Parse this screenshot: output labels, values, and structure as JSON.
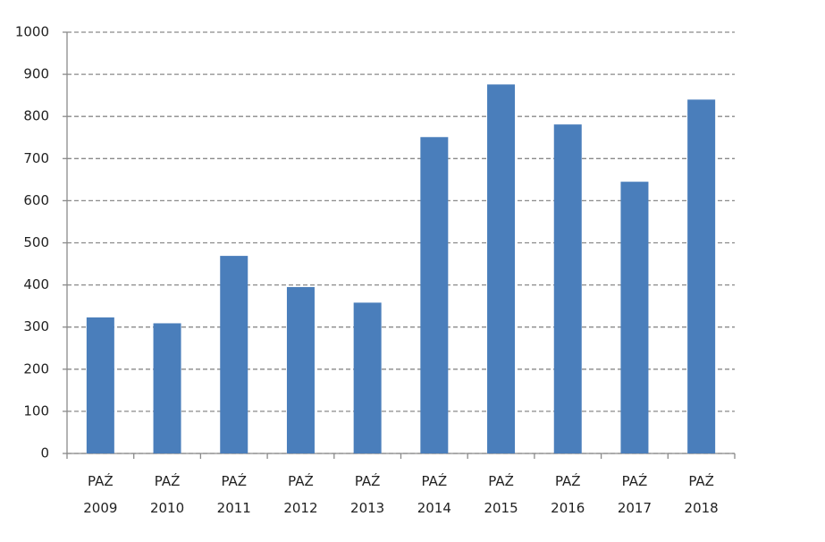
{
  "chart_data": {
    "type": "bar",
    "categories": [
      [
        "PAŹ",
        "2009"
      ],
      [
        "PAŹ",
        "2010"
      ],
      [
        "PAŹ",
        "2011"
      ],
      [
        "PAŹ",
        "2012"
      ],
      [
        "PAŹ",
        "2013"
      ],
      [
        "PAŹ",
        "2014"
      ],
      [
        "PAŹ",
        "2015"
      ],
      [
        "PAŹ",
        "2016"
      ],
      [
        "PAŹ",
        "2017"
      ],
      [
        "PAŹ",
        "2018"
      ]
    ],
    "values": [
      323,
      309,
      469,
      395,
      358,
      751,
      876,
      781,
      645,
      840
    ],
    "color": "#4a7ebb",
    "ylim": [
      0,
      1000
    ],
    "yticks": [
      0,
      100,
      200,
      300,
      400,
      500,
      600,
      700,
      800,
      900,
      1000
    ],
    "grid": true
  }
}
